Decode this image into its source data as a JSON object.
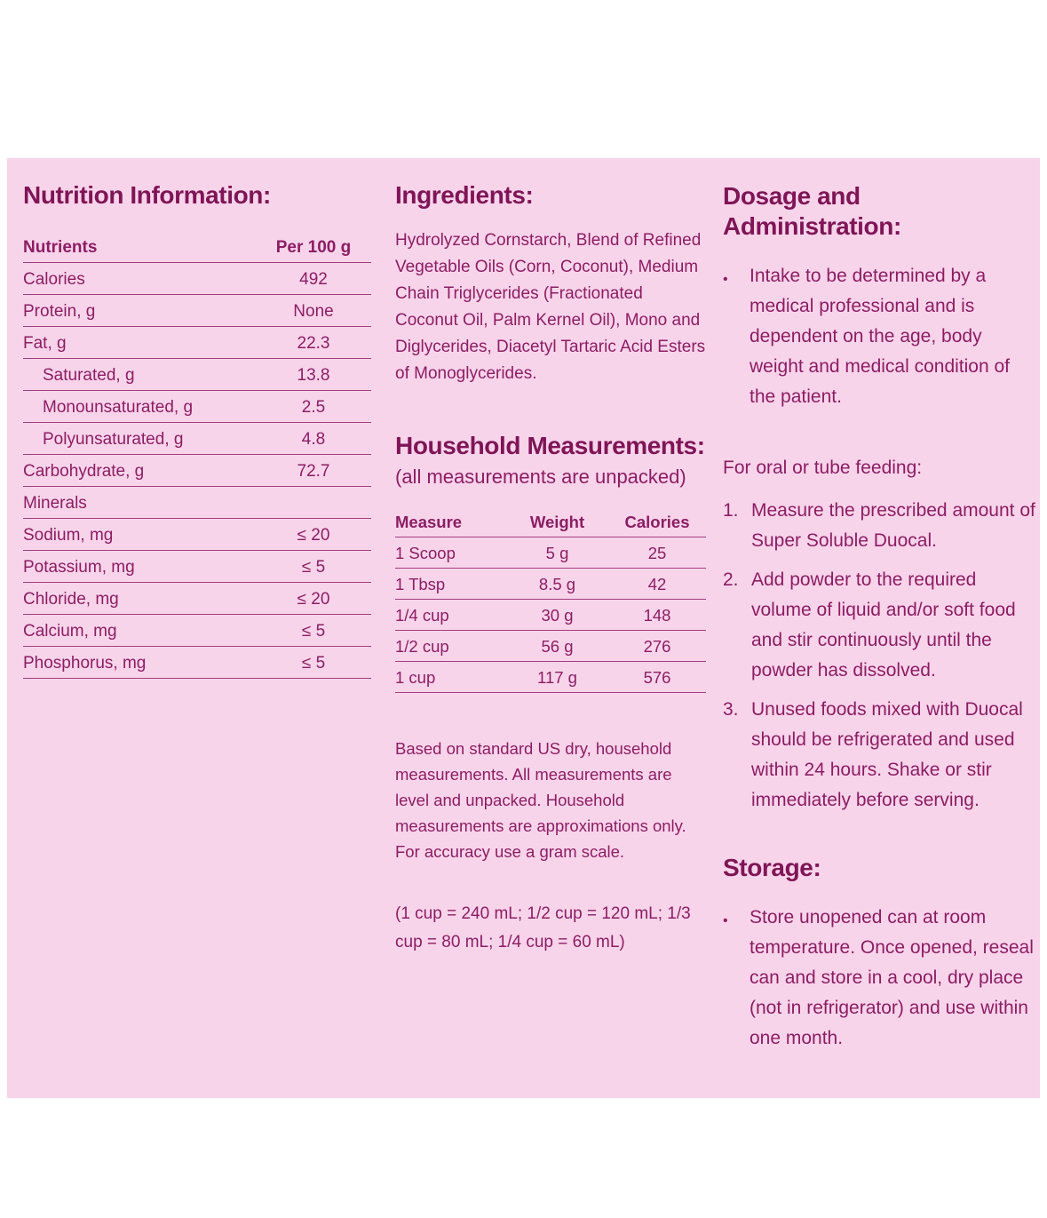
{
  "page": {
    "background": "#f8d4ea",
    "text_color": "#8c1d64",
    "heading_color": "#7f1557"
  },
  "nutrition": {
    "title": "Nutrition Information:",
    "col_nutrients": "Nutrients",
    "col_per100": "Per 100 g",
    "rows": [
      {
        "name": "Calories",
        "value": "492"
      },
      {
        "name": "Protein, g",
        "value": "None"
      },
      {
        "name": "Fat, g",
        "value": "22.3"
      },
      {
        "name": "Saturated, g",
        "value": "13.8"
      },
      {
        "name": "Monounsaturated, g",
        "value": "2.5"
      },
      {
        "name": "Polyunsaturated, g",
        "value": "4.8"
      },
      {
        "name": "Carbohydrate, g",
        "value": "72.7"
      },
      {
        "name": "Minerals",
        "value": ""
      },
      {
        "name": "Sodium, mg",
        "value": "≤ 20"
      },
      {
        "name": "Potassium, mg",
        "value": "≤ 5"
      },
      {
        "name": "Chloride, mg",
        "value": "≤ 20"
      },
      {
        "name": "Calcium, mg",
        "value": "≤ 5"
      },
      {
        "name": "Phosphorus, mg",
        "value": "≤ 5"
      }
    ]
  },
  "ingredients": {
    "title": "Ingredients:",
    "body": "Hydrolyzed Cornstarch, Blend of Refined Vegetable Oils (Corn, Coconut), Medium Chain Triglycerides (Fractionated Coconut Oil, Palm Kernel Oil), Mono and Diglycerides, Diacetyl Tartaric Acid Esters of Monoglycerides."
  },
  "household": {
    "title": "Household Measurements:",
    "subtitle": "(all measurements are unpacked)",
    "col_measure": "Measure",
    "col_weight": "Weight",
    "col_calories": "Calories",
    "rows": [
      {
        "measure": "1 Scoop",
        "weight": "5 g",
        "calories": "25"
      },
      {
        "measure": "1 Tbsp",
        "weight": "8.5 g",
        "calories": "42"
      },
      {
        "measure": "1/4 cup",
        "weight": "30 g",
        "calories": "148"
      },
      {
        "measure": "1/2 cup",
        "weight": "56 g",
        "calories": "276"
      },
      {
        "measure": "1 cup",
        "weight": "117 g",
        "calories": "576"
      }
    ],
    "note": "Based on standard US dry, household measurements. All measurements are level and unpacked. Household measurements are approximations only. For accuracy use a gram scale.",
    "conversions": "(1 cup = 240 mL;  1/2 cup = 120 mL; 1/3 cup = 80 mL;  1/4 cup = 60 mL)"
  },
  "dosage": {
    "title": "Dosage and Administration:",
    "bullet_marker": "•",
    "bullet": "Intake to be determined by a medical professional and is dependent on the age, body weight and medical condition of the patient.",
    "feeding_intro": "For oral or tube feeding:",
    "steps": [
      {
        "num": "1.",
        "text": "Measure the prescribed amount of Super Soluble Duocal."
      },
      {
        "num": "2.",
        "text": "Add powder to the required volume of liquid and/or soft food and stir continuously until the powder has dissolved."
      },
      {
        "num": "3.",
        "text": "Unused foods mixed with Duocal should be refrigerated and used within 24 hours.  Shake or stir immediately before serving."
      }
    ]
  },
  "storage": {
    "title": "Storage:",
    "bullet_marker": "•",
    "bullet": "Store unopened can at room temperature.  Once opened, reseal can and store in a cool, dry place (not in refrigerator) and use within one month."
  }
}
